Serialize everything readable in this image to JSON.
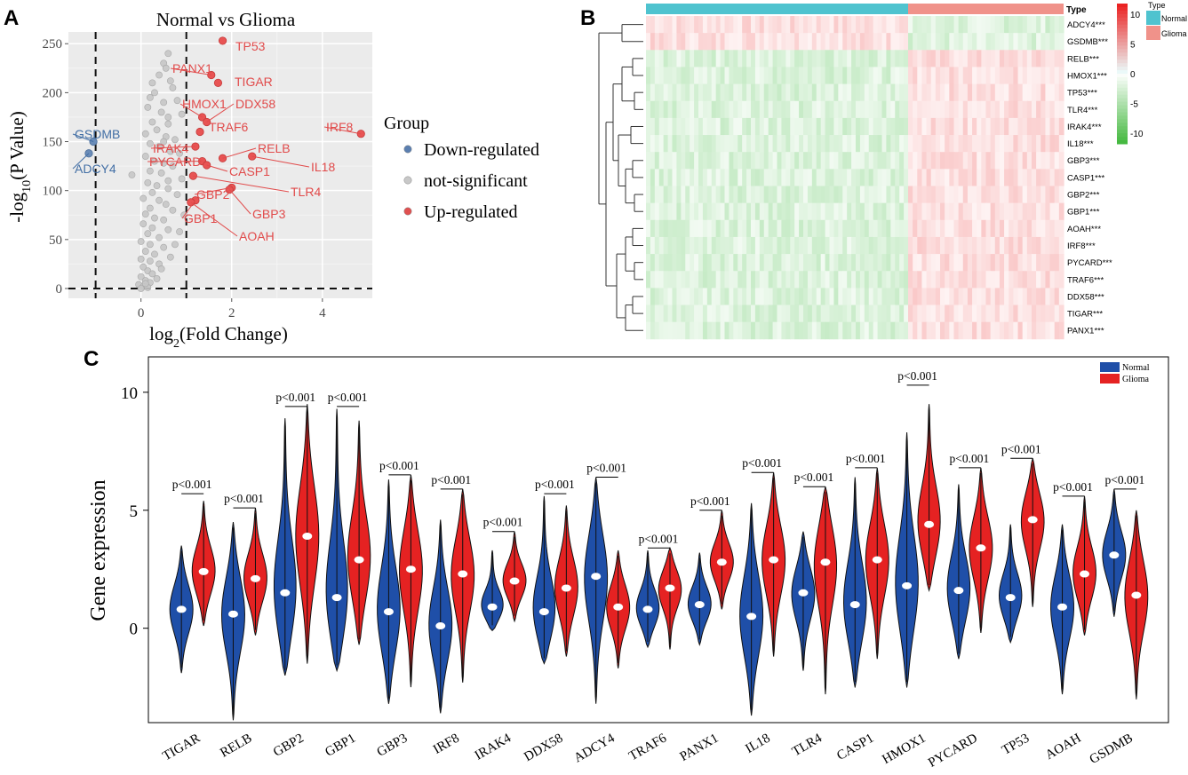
{
  "panel_labels": {
    "a": "A",
    "b": "B",
    "c": "C"
  },
  "chart_data": [
    {
      "id": "A",
      "type": "scatter",
      "title": "Normal vs Glioma",
      "xlabel": "log2(Fold Change)",
      "ylabel": "-log10(P Value)",
      "xlim": [
        -1.6,
        5.1
      ],
      "ylim": [
        -10,
        262
      ],
      "xticks": [
        0,
        2,
        4
      ],
      "yticks": [
        0,
        50,
        100,
        150,
        200,
        250
      ],
      "thresholds": {
        "x": [
          -1,
          1
        ],
        "y": 0
      },
      "legend": {
        "title": "Group",
        "entries": [
          {
            "label": "Down-regulated",
            "color": "#5b7fb0"
          },
          {
            "label": "not-significant",
            "color": "#c8c8c8"
          },
          {
            "label": "Up-regulated",
            "color": "#e05050"
          }
        ]
      },
      "labeled_points": [
        {
          "gene": "TP53",
          "x": 1.8,
          "y": 253,
          "group": "up"
        },
        {
          "gene": "PANX1",
          "x": 1.55,
          "y": 218,
          "group": "up"
        },
        {
          "gene": "TIGAR",
          "x": 1.7,
          "y": 210,
          "group": "up"
        },
        {
          "gene": "HMOX1",
          "x": 1.35,
          "y": 175,
          "group": "up"
        },
        {
          "gene": "DDX58",
          "x": 1.45,
          "y": 170,
          "group": "up"
        },
        {
          "gene": "TRAF6",
          "x": 1.3,
          "y": 160,
          "group": "up"
        },
        {
          "gene": "IRF8",
          "x": 4.85,
          "y": 158,
          "group": "up"
        },
        {
          "gene": "IRAK4",
          "x": 1.2,
          "y": 145,
          "group": "up"
        },
        {
          "gene": "RELB",
          "x": 1.8,
          "y": 133,
          "group": "up"
        },
        {
          "gene": "PYCARD",
          "x": 1.35,
          "y": 130,
          "group": "up"
        },
        {
          "gene": "IL18",
          "x": 2.45,
          "y": 135,
          "group": "up"
        },
        {
          "gene": "CASP1",
          "x": 1.45,
          "y": 126,
          "group": "up"
        },
        {
          "gene": "TLR4",
          "x": 1.15,
          "y": 115,
          "group": "up"
        },
        {
          "gene": "GBP2",
          "x": 2.0,
          "y": 103,
          "group": "up"
        },
        {
          "gene": "GBP3",
          "x": 1.95,
          "y": 101,
          "group": "up"
        },
        {
          "gene": "GBP1",
          "x": 1.2,
          "y": 90,
          "group": "up"
        },
        {
          "gene": "AOAH",
          "x": 1.1,
          "y": 88,
          "group": "up"
        },
        {
          "gene": "GSDMB",
          "x": -1.05,
          "y": 150,
          "group": "down"
        },
        {
          "gene": "ADCY4",
          "x": -1.15,
          "y": 138,
          "group": "down"
        }
      ],
      "background_points": [
        [
          0.5,
          230
        ],
        [
          0.6,
          240
        ],
        [
          0.55,
          225
        ],
        [
          0.65,
          212
        ],
        [
          0.4,
          218
        ],
        [
          0.7,
          205
        ],
        [
          0.3,
          200
        ],
        [
          0.2,
          195
        ],
        [
          0.5,
          190
        ],
        [
          0.8,
          192
        ],
        [
          0.15,
          185
        ],
        [
          0.45,
          180
        ],
        [
          0.9,
          178
        ],
        [
          0.25,
          170
        ],
        [
          0.6,
          168
        ],
        [
          0.35,
          162
        ],
        [
          0.1,
          158
        ],
        [
          0.55,
          155
        ],
        [
          0.75,
          152
        ],
        [
          0.2,
          148
        ],
        [
          0.4,
          145
        ],
        [
          0.65,
          140
        ],
        [
          0.85,
          138
        ],
        [
          0.1,
          135
        ],
        [
          0.3,
          130
        ],
        [
          0.5,
          128
        ],
        [
          0.7,
          125
        ],
        [
          0.2,
          120
        ],
        [
          0.45,
          118
        ],
        [
          -0.2,
          116
        ],
        [
          0.9,
          112
        ],
        [
          0.15,
          108
        ],
        [
          0.35,
          105
        ],
        [
          0.6,
          102
        ],
        [
          0.25,
          98
        ],
        [
          0.8,
          96
        ],
        [
          0.05,
          92
        ],
        [
          0.4,
          90
        ],
        [
          0.55,
          86
        ],
        [
          0.2,
          82
        ],
        [
          0.7,
          80
        ],
        [
          0.1,
          76
        ],
        [
          0.3,
          72
        ],
        [
          0.5,
          70
        ],
        [
          0.05,
          66
        ],
        [
          0.25,
          62
        ],
        [
          0.6,
          60
        ],
        [
          0.15,
          56
        ],
        [
          0.4,
          52
        ],
        [
          0.0,
          48
        ],
        [
          0.2,
          45
        ],
        [
          0.5,
          42
        ],
        [
          0.1,
          38
        ],
        [
          0.3,
          35
        ],
        [
          0.0,
          30
        ],
        [
          0.2,
          28
        ],
        [
          0.4,
          25
        ],
        [
          0.05,
          22
        ],
        [
          0.15,
          18
        ],
        [
          0.25,
          15
        ],
        [
          0.0,
          12
        ],
        [
          0.1,
          8
        ],
        [
          0.2,
          6
        ],
        [
          -0.05,
          4
        ],
        [
          0.05,
          2
        ],
        [
          0.15,
          1
        ],
        [
          0.0,
          0
        ],
        [
          0.1,
          5
        ],
        [
          0.35,
          10
        ],
        [
          0.45,
          20
        ],
        [
          0.65,
          32
        ],
        [
          0.75,
          45
        ],
        [
          0.85,
          58
        ],
        [
          0.95,
          75
        ],
        [
          0.6,
          110
        ],
        [
          0.5,
          150
        ],
        [
          0.25,
          210
        ],
        [
          0.6,
          175
        ]
      ]
    },
    {
      "id": "B",
      "type": "heatmap",
      "annotation_title": "Type",
      "annotation_groups": [
        {
          "label": "Normal",
          "color": "#4fc3cf"
        },
        {
          "label": "Glioma",
          "color": "#f0928a"
        }
      ],
      "color_scale": {
        "ticks": [
          10,
          5,
          0,
          -5,
          -10
        ],
        "high": "#e53935",
        "mid": "#ffffff",
        "low": "#43a83a"
      },
      "rows": [
        "ADCY4***",
        "GSDMB***",
        "RELB***",
        "HMOX1***",
        "TP53***",
        "TLR4***",
        "IRAK4***",
        "IL18***",
        "GBP3***",
        "CASP1***",
        "GBP2***",
        "GBP1***",
        "AOAH***",
        "IRF8***",
        "PYCARD***",
        "TRAF6***",
        "DDX58***",
        "TIGAR***",
        "PANX1***"
      ],
      "row_pattern_normal": [
        1,
        1,
        -1,
        -1,
        -1,
        -1,
        -1,
        -1,
        -1,
        -1,
        -1,
        -1,
        -1,
        -1,
        -1,
        -1,
        -1,
        -1,
        -1
      ],
      "row_pattern_glioma": [
        -1,
        -1,
        1,
        1,
        1,
        1,
        1,
        1,
        1,
        1,
        1,
        1,
        1,
        1,
        1,
        1,
        1,
        1,
        1
      ]
    },
    {
      "id": "C",
      "type": "violin",
      "ylabel": "Gene expression",
      "ylim": [
        -4,
        11.5
      ],
      "yticks": [
        0,
        5,
        10
      ],
      "legend": [
        {
          "label": "Normal",
          "color": "#1f4fa8"
        },
        {
          "label": "Glioma",
          "color": "#e52222"
        }
      ],
      "categories": [
        "TIGAR",
        "RELB",
        "GBP2",
        "GBP1",
        "GBP3",
        "IRF8",
        "IRAK4",
        "DDX58",
        "ADCY4",
        "TRAF6",
        "PANX1",
        "IL18",
        "TLR4",
        "CASP1",
        "HMOX1",
        "PYCARD",
        "TP53",
        "AOAH",
        "GSDMB"
      ],
      "pvalue_label": "p<0.001",
      "series": [
        {
          "name": "Normal",
          "median": [
            0.8,
            0.6,
            1.5,
            1.3,
            0.7,
            0.1,
            0.9,
            0.7,
            2.2,
            0.8,
            1.0,
            0.5,
            1.5,
            1.0,
            1.8,
            1.6,
            1.3,
            0.9,
            3.1
          ],
          "min": [
            -1.9,
            -3.9,
            -2.0,
            -1.8,
            -3.2,
            -3.6,
            -0.1,
            -1.5,
            -3.2,
            -0.8,
            -0.7,
            -3.7,
            -1.8,
            -2.5,
            -2.5,
            -1.3,
            -0.6,
            -2.8,
            0.5
          ],
          "max": [
            3.5,
            4.5,
            8.9,
            9.3,
            6.3,
            4.6,
            3.3,
            5.6,
            6.4,
            3.3,
            3.2,
            5.3,
            4.1,
            6.4,
            8.3,
            6.1,
            4.4,
            4.4,
            5.9
          ]
        },
        {
          "name": "Glioma",
          "median": [
            2.4,
            2.1,
            3.9,
            2.9,
            2.5,
            2.3,
            2.0,
            1.7,
            0.9,
            1.7,
            2.8,
            2.9,
            2.8,
            2.9,
            4.4,
            3.4,
            4.6,
            2.3,
            1.4
          ],
          "min": [
            0.1,
            -0.3,
            -1.5,
            -0.7,
            -2.5,
            -2.3,
            0.3,
            -1.2,
            -1.7,
            -0.9,
            0.8,
            -1.2,
            -2.8,
            -1.3,
            1.6,
            -0.2,
            0.9,
            -0.3,
            -3.0
          ],
          "max": [
            5.4,
            5.1,
            9.5,
            8.8,
            6.5,
            5.9,
            4.1,
            5.2,
            3.3,
            3.4,
            5.0,
            6.6,
            6.0,
            6.8,
            9.5,
            6.8,
            7.2,
            5.6,
            5.0
          ]
        }
      ],
      "pvalue_bracket_height": [
        5.7,
        5.1,
        9.4,
        9.4,
        6.5,
        5.9,
        4.1,
        5.7,
        6.4,
        3.4,
        5.0,
        6.6,
        6.0,
        6.8,
        10.3,
        6.8,
        7.2,
        5.6,
        5.9
      ]
    }
  ]
}
